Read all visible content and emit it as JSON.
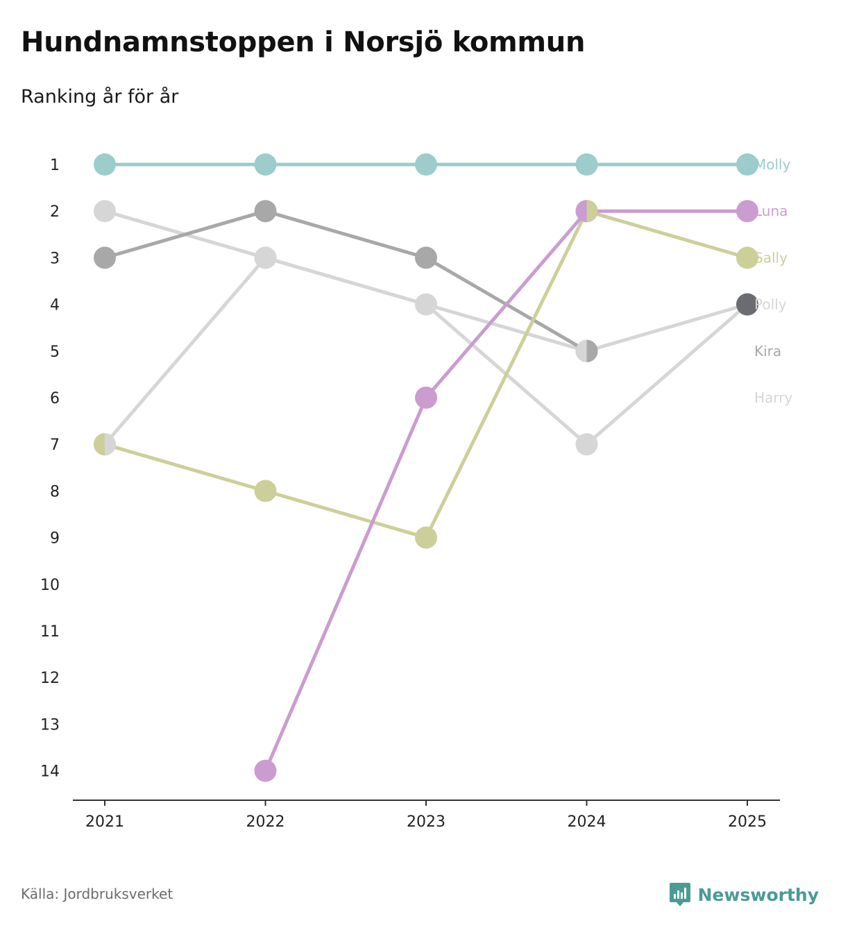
{
  "title": "Hundnamnstoppen i Norsjö kommun",
  "subtitle": "Ranking år för år",
  "source": "Källa: Jordbruksverket",
  "brand": {
    "name": "Newsworthy",
    "icon": "newsworthy-logo-icon",
    "color": "#4a9b94"
  },
  "chart_data": {
    "type": "line",
    "title": "Hundnamnstoppen i Norsjö kommun",
    "subtitle": "Ranking år för år",
    "xlabel": "",
    "ylabel": "",
    "x": [
      "2021",
      "2022",
      "2023",
      "2024",
      "2025"
    ],
    "y_ticks": [
      "1",
      "2",
      "3",
      "4",
      "5",
      "6",
      "7",
      "8",
      "9",
      "10",
      "11",
      "12",
      "13",
      "14"
    ],
    "ylim": [
      1,
      14
    ],
    "y_inverted": true,
    "grid": false,
    "legend": "direct labels at right end of lines",
    "series": [
      {
        "name": "Harry",
        "color": "#d6d6d6",
        "values": [
          2,
          3,
          4,
          7,
          4
        ]
      },
      {
        "name": "Polly",
        "color": "#d6d6d6",
        "values": [
          7,
          3,
          null,
          5,
          4
        ]
      },
      {
        "name": "Kira",
        "color": "#a8a8a8",
        "values": [
          3,
          2,
          3,
          5,
          null
        ]
      },
      {
        "name": "Sally",
        "color": "#cdcf9a",
        "values": [
          7,
          8,
          9,
          2,
          3
        ]
      },
      {
        "name": "Luna",
        "color": "#cb9ccf",
        "values": [
          null,
          14,
          6,
          2,
          2
        ]
      },
      {
        "name": "Molly",
        "color": "#9ccccc",
        "values": [
          1,
          1,
          1,
          1,
          1
        ]
      }
    ],
    "end_labels": [
      {
        "name": "Molly",
        "color": "#9ccccc",
        "rank": 1
      },
      {
        "name": "Luna",
        "color": "#cb9ccf",
        "rank": 2
      },
      {
        "name": "Sally",
        "color": "#cdcf9a",
        "rank": 3
      },
      {
        "name": "Polly",
        "color": "#d6d6d6",
        "rank": 4
      },
      {
        "name": "Kira",
        "color": "#a8a8a8",
        "rank": 5
      },
      {
        "name": "Harry",
        "color": "#d6d6d6",
        "rank": 6
      }
    ],
    "highlight_point": {
      "x": "2025",
      "rank": 4,
      "color": "#6b6b72"
    }
  }
}
